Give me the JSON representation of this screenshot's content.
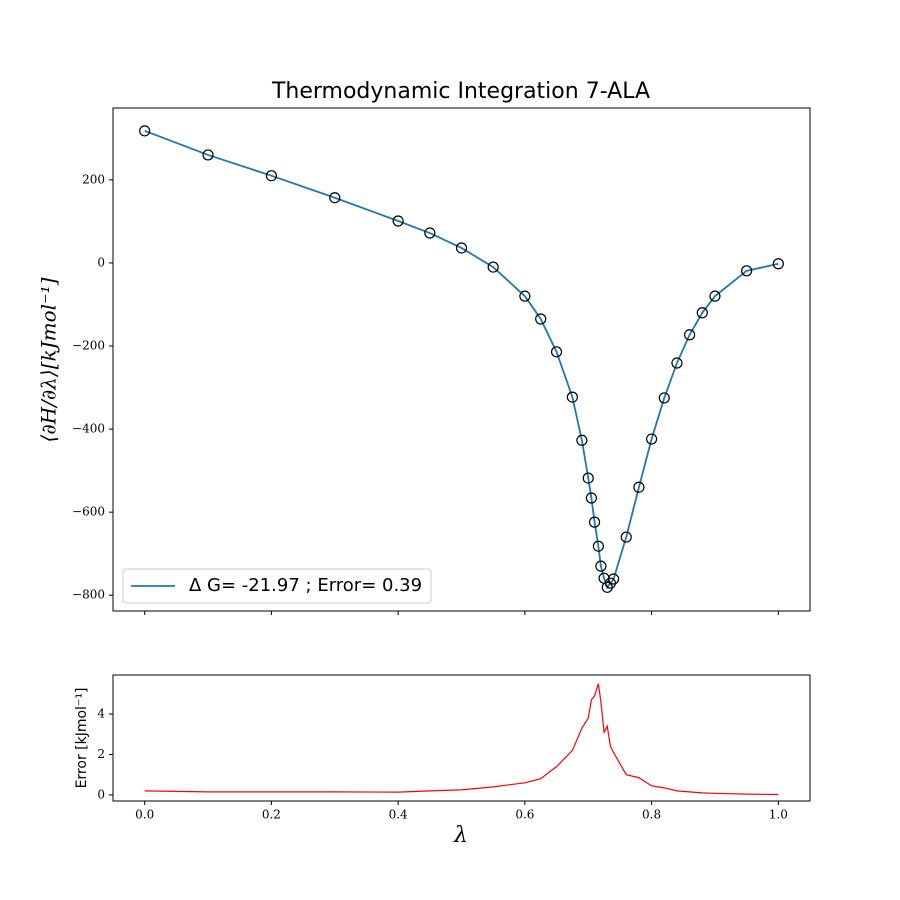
{
  "chart_data": [
    {
      "type": "line",
      "title": "Thermodynamic Integration 7-ALA",
      "ylabel": "⟨∂H/∂λ⟩[kJmol⁻¹]",
      "x": [
        0,
        0.1,
        0.2,
        0.3,
        0.4,
        0.45,
        0.5,
        0.55,
        0.6,
        0.625,
        0.65,
        0.675,
        0.69,
        0.7,
        0.705,
        0.71,
        0.716,
        0.72,
        0.725,
        0.73,
        0.735,
        0.74,
        0.76,
        0.78,
        0.8,
        0.82,
        0.84,
        0.86,
        0.88,
        0.9,
        0.95,
        1.0
      ],
      "series": [
        {
          "name": "Δ G= -21.97 ; Error= 0.39",
          "color": "#1f77b4",
          "values": [
            318,
            260,
            210,
            157,
            101,
            72,
            36,
            -10,
            -80,
            -135,
            -214,
            -323,
            -427,
            -518,
            -566,
            -624,
            -682,
            -730,
            -759,
            -781,
            -771,
            -761,
            -660,
            -540,
            -424,
            -325,
            -241,
            -173,
            -120,
            -80,
            -19,
            -2
          ]
        }
      ],
      "marker": "o",
      "marker_edge_color": "#000000",
      "legend": "lower left",
      "xlim": [
        -0.05,
        1.05
      ],
      "xticks": [
        0,
        0.2,
        0.4,
        0.6,
        0.8,
        1.0
      ],
      "ylim": [
        -838,
        373
      ],
      "yticks": [
        {
          "value": -800,
          "label": "−800"
        },
        {
          "value": -600,
          "label": "−600"
        },
        {
          "value": -400,
          "label": "−400"
        },
        {
          "value": -200,
          "label": "−200"
        },
        0,
        200
      ]
    },
    {
      "type": "line",
      "xlabel": "λ",
      "ylabel": "Error [kJmol⁻¹]",
      "color": "#ff0000",
      "x": [
        0,
        0.1,
        0.2,
        0.3,
        0.4,
        0.45,
        0.5,
        0.55,
        0.6,
        0.625,
        0.65,
        0.675,
        0.69,
        0.7,
        0.705,
        0.71,
        0.716,
        0.72,
        0.725,
        0.73,
        0.735,
        0.74,
        0.76,
        0.78,
        0.8,
        0.82,
        0.84,
        0.86,
        0.88,
        0.9,
        0.95,
        1.0
      ],
      "values": [
        0.2,
        0.15,
        0.15,
        0.15,
        0.14,
        0.2,
        0.25,
        0.4,
        0.6,
        0.8,
        1.4,
        2.2,
        3.3,
        3.8,
        4.7,
        4.9,
        5.5,
        4.6,
        3.1,
        3.4,
        2.4,
        2.1,
        1.0,
        0.85,
        0.45,
        0.35,
        0.2,
        0.15,
        0.1,
        0.08,
        0.04,
        0.02
      ],
      "xlim": [
        -0.05,
        1.05
      ],
      "xticks": [
        {
          "value": 0,
          "label": "0.0"
        },
        {
          "value": 0.2,
          "label": "0.2"
        },
        {
          "value": 0.4,
          "label": "0.4"
        },
        {
          "value": 0.6,
          "label": "0.6"
        },
        {
          "value": 0.8,
          "label": "0.8"
        },
        {
          "value": 1.0,
          "label": "1.0"
        }
      ],
      "ylim": [
        -0.3,
        5.93
      ],
      "yticks": [
        0,
        2,
        4
      ]
    }
  ]
}
